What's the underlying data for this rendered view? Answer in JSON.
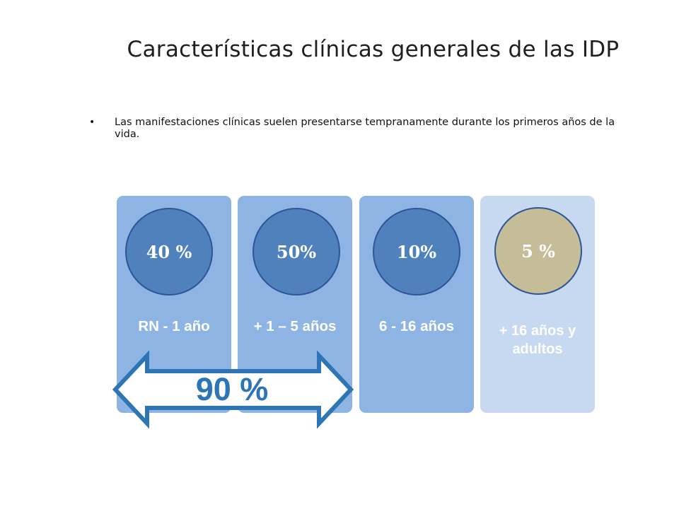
{
  "title": "Características clínicas generales de las IDP",
  "bullet": {
    "symbol": "•",
    "text": "Las manifestaciones clínicas suelen presentarse tempranamente durante los primeros años de la vida."
  },
  "columns": [
    {
      "percent": "40 %",
      "label": "RN  - 1 año",
      "value": 40,
      "fill": "#8eb4e3",
      "circle_fill": "#4f81bd",
      "circle_text": "#ffffff"
    },
    {
      "percent": "50%",
      "label": "+ 1 – 5 años",
      "value": 50,
      "fill": "#8eb4e3",
      "circle_fill": "#4f81bd",
      "circle_text": "#ffffff"
    },
    {
      "percent": "10%",
      "label": "6  - 16 años",
      "value": 10,
      "fill": "#8eb4e3",
      "circle_fill": "#4f81bd",
      "circle_text": "#ffffff"
    },
    {
      "percent": "5 %",
      "label": "+ 16 años y adultos",
      "value": 5,
      "fill": "#c6d9f1",
      "circle_fill": "#c4bd97",
      "circle_text": "#ffffff"
    }
  ],
  "arrow": {
    "label": "90 %",
    "stroke": "#2e75b6",
    "fill": "#ffffff"
  },
  "colors": {
    "accent": "#2e75b6",
    "circle_border": "#2f5597"
  }
}
